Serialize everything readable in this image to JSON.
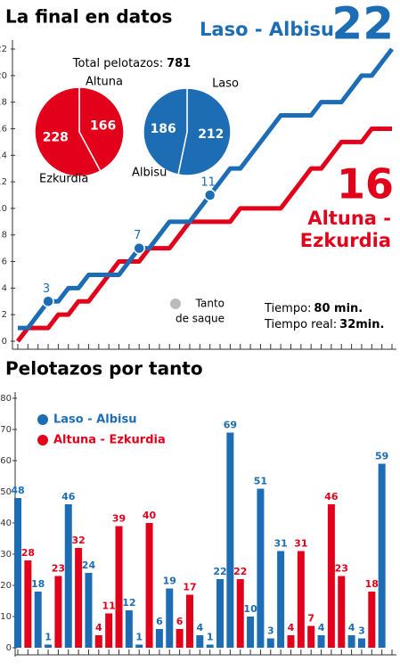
{
  "chart_data": [
    {
      "type": "line",
      "title": "La final en datos",
      "x": [
        1,
        2,
        3,
        4,
        5,
        6,
        7,
        8,
        9,
        10,
        11,
        12,
        13,
        14,
        15,
        16,
        17,
        18,
        19,
        20,
        21,
        22,
        23,
        24,
        25,
        26,
        27,
        28,
        29,
        30,
        31,
        32,
        33,
        34,
        35,
        36,
        37,
        38
      ],
      "series": [
        {
          "name": "Laso - Albisu",
          "color": "#1d6db4",
          "values": [
            1,
            1,
            2,
            3,
            3,
            4,
            4,
            5,
            5,
            5,
            5,
            6,
            7,
            7,
            8,
            9,
            9,
            9,
            10,
            11,
            12,
            13,
            13,
            14,
            15,
            16,
            17,
            17,
            17,
            17,
            18,
            18,
            18,
            19,
            20,
            20,
            21,
            22
          ]
        },
        {
          "name": "Altuna - Ezkurdia",
          "color": "#e2001a",
          "values": [
            0,
            1,
            1,
            1,
            2,
            2,
            3,
            3,
            4,
            5,
            6,
            6,
            6,
            7,
            7,
            7,
            8,
            9,
            9,
            9,
            9,
            9,
            10,
            10,
            10,
            10,
            10,
            11,
            12,
            13,
            13,
            14,
            15,
            15,
            15,
            16,
            16,
            16
          ]
        }
      ],
      "xlim": [
        0,
        39
      ],
      "ylim": [
        0,
        22
      ],
      "yticks": [
        0,
        2,
        4,
        6,
        8,
        10,
        12,
        14,
        16,
        18,
        20,
        22
      ],
      "annotations": [
        {
          "x": 4,
          "y": 3
        },
        {
          "x": 13,
          "y": 7
        },
        {
          "x": 20,
          "y": 11
        }
      ],
      "total": {
        "label": "Total pelotazos:",
        "value": 781
      },
      "pies": [
        {
          "labels": [
            "Altuna",
            "Ezkurdia"
          ],
          "values": [
            166,
            228
          ],
          "color": "#e2001a"
        },
        {
          "labels": [
            "Laso",
            "Albisu"
          ],
          "values": [
            212,
            186
          ],
          "color": "#1d6db4"
        }
      ],
      "note": [
        "Tanto",
        "de saque"
      ],
      "times": [
        {
          "label": "Tiempo:",
          "value": "80 min."
        },
        {
          "label": "Tiempo real:",
          "value": "32min."
        }
      ]
    },
    {
      "type": "bar",
      "title": "Pelotazos por tanto",
      "series": [
        {
          "name": "Altuna - Ezkurdia",
          "color": "#e2001a",
          "values": [
            null,
            28,
            null,
            null,
            23,
            null,
            32,
            null,
            4,
            11,
            39,
            null,
            null,
            40,
            null,
            null,
            6,
            17,
            null,
            null,
            null,
            null,
            22,
            null,
            null,
            null,
            null,
            4,
            31,
            7,
            null,
            46,
            23,
            null,
            null,
            18,
            null,
            null
          ]
        },
        {
          "name": "Laso - Albisu",
          "color": "#1d6db4",
          "values": [
            48,
            null,
            18,
            1,
            null,
            46,
            null,
            24,
            null,
            null,
            null,
            12,
            1,
            null,
            6,
            19,
            null,
            null,
            4,
            1,
            22,
            69,
            null,
            10,
            51,
            3,
            31,
            null,
            null,
            null,
            4,
            null,
            null,
            4,
            3,
            null,
            59,
            null
          ]
        }
      ],
      "ylim": [
        0,
        80
      ],
      "yticks": [
        0,
        10,
        20,
        30,
        40,
        50,
        60,
        70,
        80
      ]
    }
  ]
}
